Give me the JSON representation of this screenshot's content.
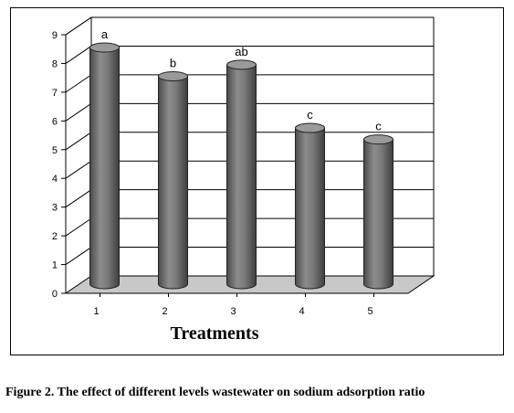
{
  "chart_data": {
    "type": "bar",
    "categories": [
      "1",
      "2",
      "3",
      "4",
      "5"
    ],
    "values": [
      8.3,
      7.3,
      7.7,
      5.5,
      5.1
    ],
    "bar_labels": [
      "a",
      "b",
      "ab",
      "c",
      "c"
    ],
    "xlabel": "Treatments",
    "ylabel": "",
    "ylim": [
      0,
      9
    ],
    "yticks": [
      "0",
      "1",
      "2",
      "3",
      "4",
      "5",
      "6",
      "7",
      "8",
      "9"
    ],
    "grid": true,
    "style": "3d-cylinder",
    "colors": {
      "bar": "#7a7a7a",
      "floor": "#c8c8c8"
    }
  },
  "caption": "Figure 2. The effect of different levels wastewater on sodium adsorption ratio"
}
